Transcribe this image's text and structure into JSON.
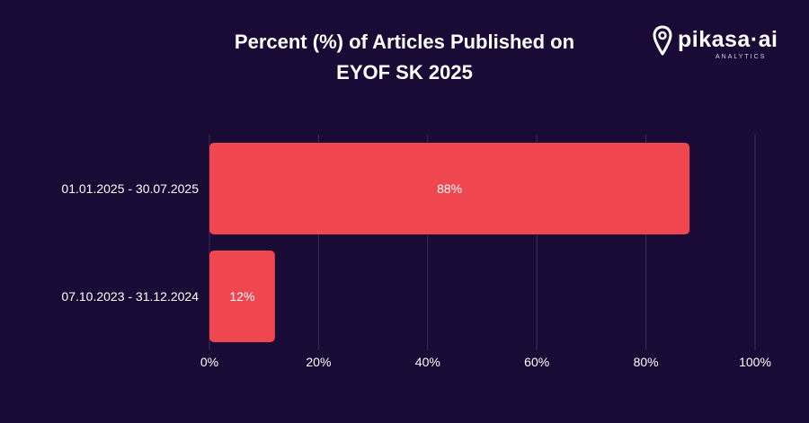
{
  "title_lines": [
    "Percent (%) of Articles Published on",
    "EYOF SK 2025"
  ],
  "logo": {
    "name": "pikasa·ai",
    "tagline": "ANALYTICS"
  },
  "colors": {
    "background": "#1a0b36",
    "bar": "#ef4650",
    "grid": "#3a2d55",
    "text": "#ffffff"
  },
  "chart_data": {
    "type": "bar",
    "orientation": "horizontal",
    "categories": [
      "01.01.2025 - 30.07.2025",
      "07.10.2023 - 31.12.2024"
    ],
    "values": [
      88,
      12
    ],
    "data_labels": [
      "88%",
      "12%"
    ],
    "xlim": [
      0,
      100
    ],
    "xticks": [
      0,
      20,
      40,
      60,
      80,
      100
    ],
    "xtick_labels": [
      "0%",
      "20%",
      "40%",
      "60%",
      "80%",
      "100%"
    ],
    "grid": "vertical"
  }
}
